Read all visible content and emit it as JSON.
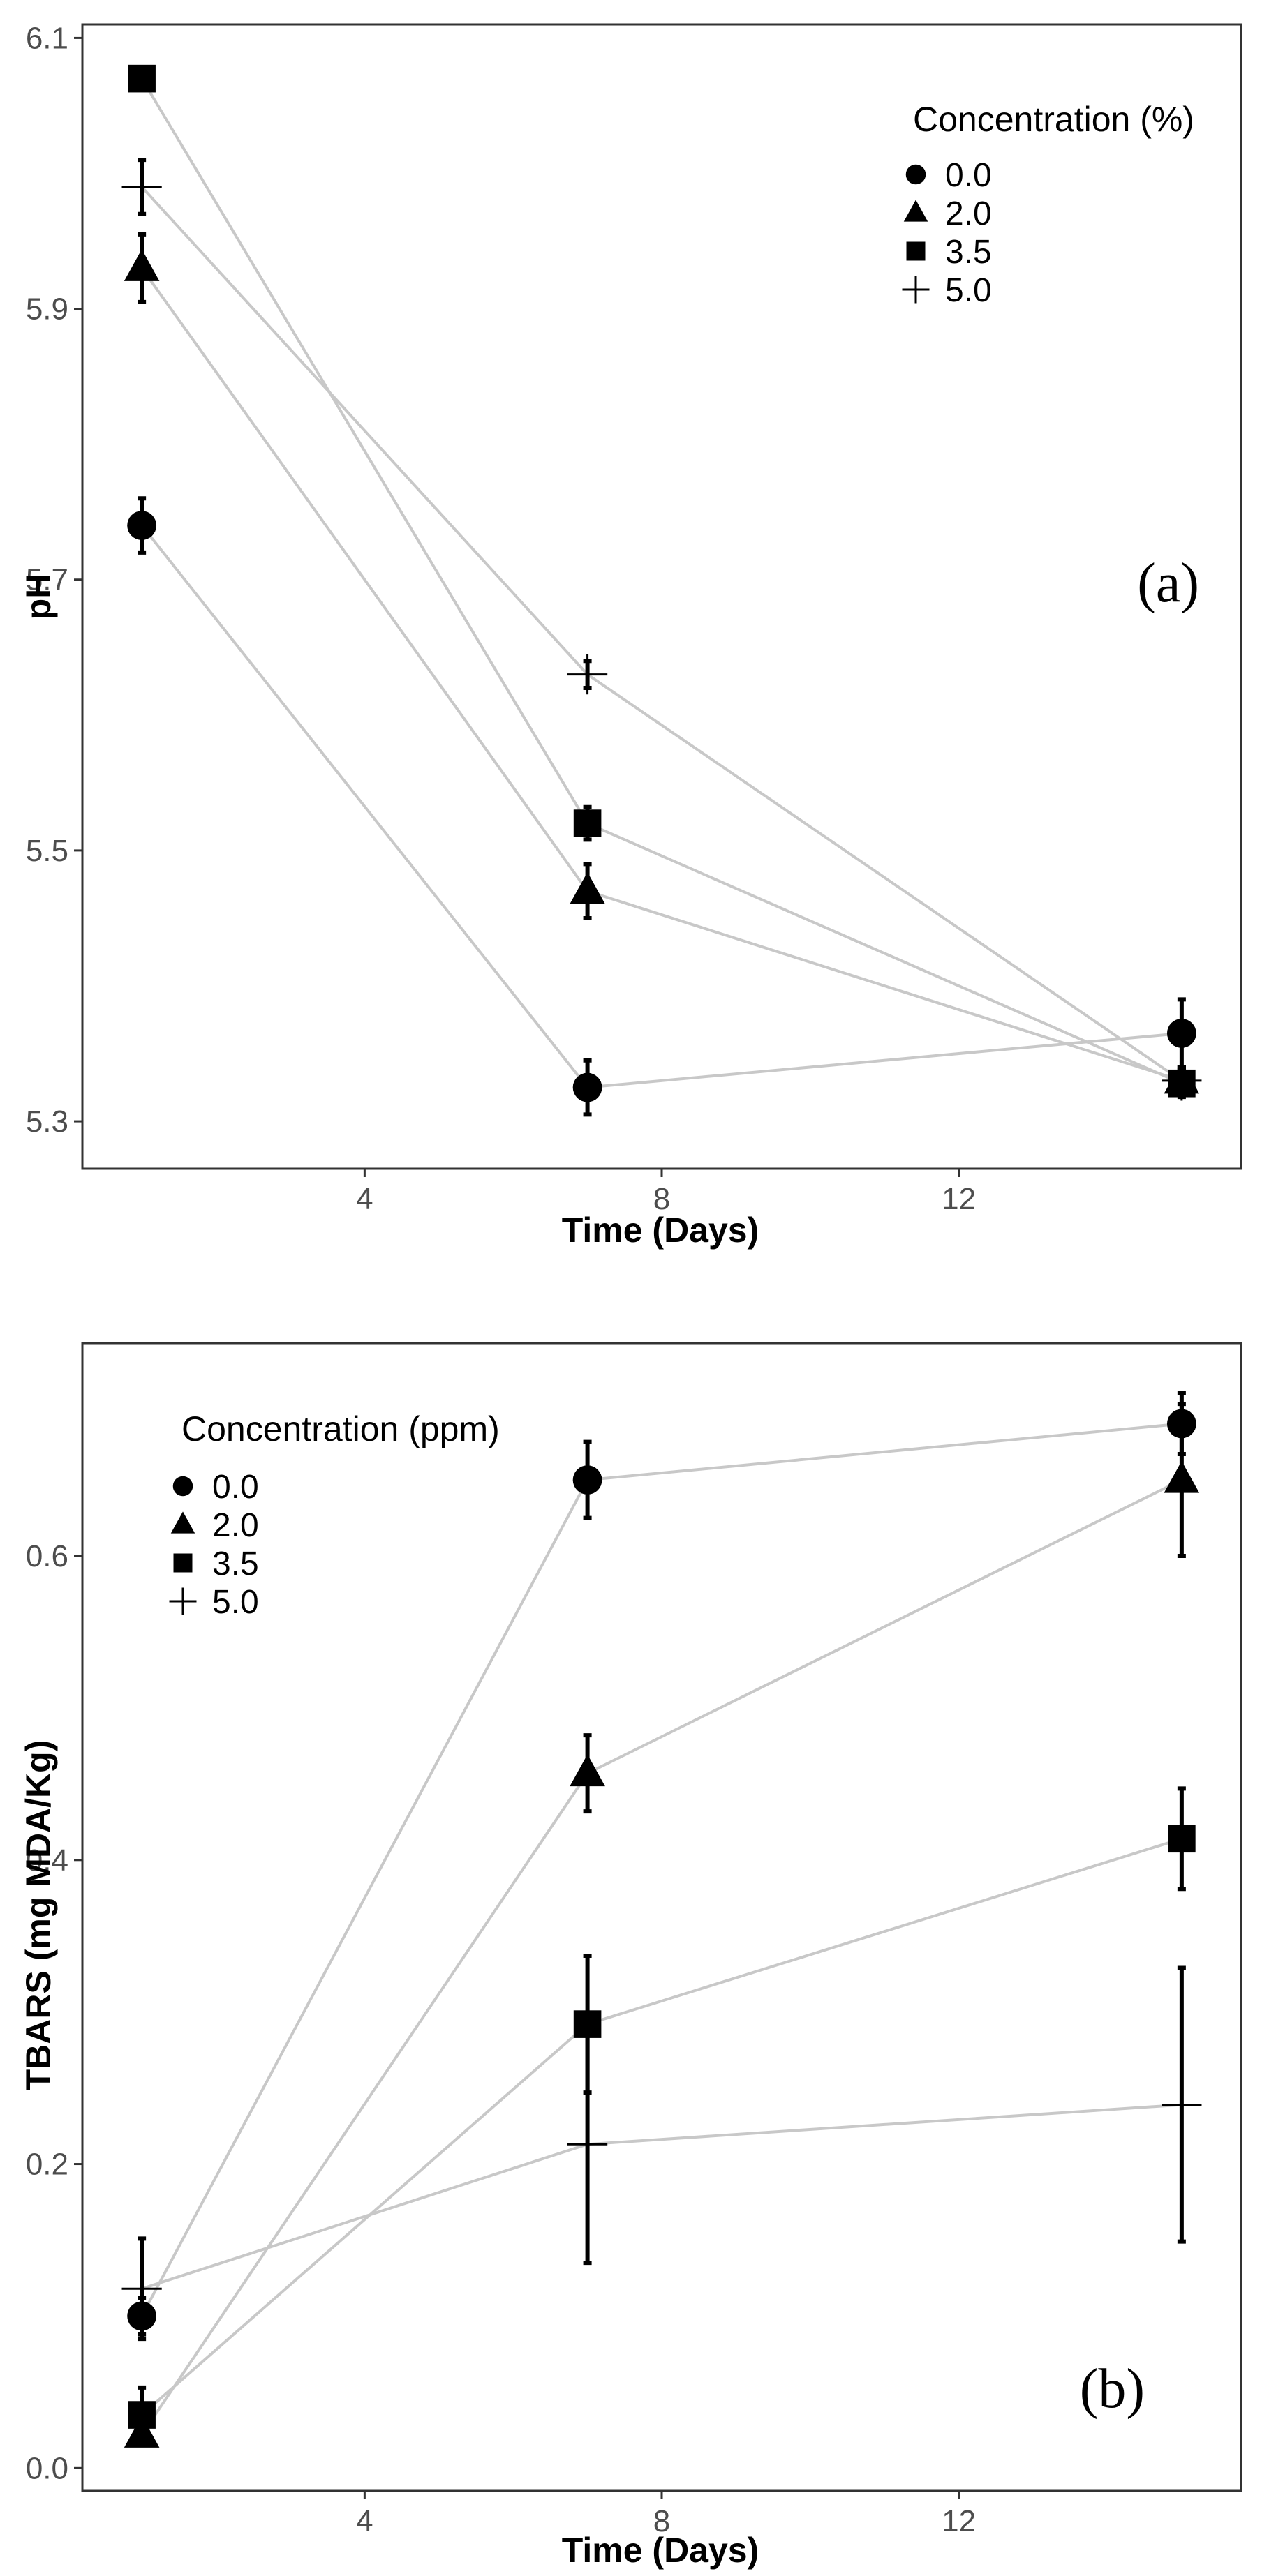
{
  "chart_data": [
    {
      "type": "line",
      "panel_label": "(a)",
      "xlabel": "Time (Days)",
      "ylabel": "pH",
      "xlim": [
        0.2,
        15.8
      ],
      "ylim": [
        5.265,
        6.11
      ],
      "x_ticks": [
        4,
        8,
        12
      ],
      "y_ticks": [
        5.3,
        5.5,
        5.7,
        5.9,
        6.1
      ],
      "x_tick_labels": [
        "4",
        "8",
        "12"
      ],
      "y_tick_labels": [
        "5.3",
        "5.5",
        "5.7",
        "5.9",
        "6.1"
      ],
      "grid": false,
      "legend": {
        "title": "Concentration (%)",
        "position": "top-right"
      },
      "x": [
        1,
        7,
        15
      ],
      "series": [
        {
          "name": "0.0",
          "marker": "circle",
          "values": [
            5.74,
            5.325,
            5.365
          ],
          "error": [
            0.02,
            0.02,
            0.025
          ]
        },
        {
          "name": "2.0",
          "marker": "triangle",
          "values": [
            5.93,
            5.47,
            5.33
          ],
          "error": [
            0.025,
            0.02,
            0.01
          ]
        },
        {
          "name": "3.5",
          "marker": "square",
          "values": [
            6.07,
            5.52,
            5.328
          ],
          "error": [
            0.008,
            0.012,
            0.01
          ]
        },
        {
          "name": "5.0",
          "marker": "plus",
          "values": [
            5.99,
            5.63,
            5.33
          ],
          "error": [
            0.02,
            0.01,
            0.01
          ]
        }
      ]
    },
    {
      "type": "line",
      "panel_label": "(b)",
      "xlabel": "Time (Days)",
      "ylabel": "TBARS (mg MDA/Kg)",
      "xlim": [
        0.2,
        15.8
      ],
      "ylim": [
        -0.015,
        0.74
      ],
      "x_ticks": [
        4,
        8,
        12
      ],
      "y_ticks": [
        0.0,
        0.2,
        0.4,
        0.6
      ],
      "x_tick_labels": [
        "4",
        "8",
        "12"
      ],
      "y_tick_labels": [
        "0.0",
        "0.2",
        "0.4",
        "0.6"
      ],
      "grid": false,
      "legend": {
        "title": "Concentration (ppm)",
        "position": "top-left"
      },
      "x": [
        1,
        7,
        15
      ],
      "series": [
        {
          "name": "0.0",
          "marker": "circle",
          "values": [
            0.1,
            0.65,
            0.687
          ],
          "error": [
            0.012,
            0.025,
            0.02
          ]
        },
        {
          "name": "2.0",
          "marker": "triangle",
          "values": [
            0.022,
            0.457,
            0.65
          ],
          "error": [
            0.006,
            0.025,
            0.05
          ]
        },
        {
          "name": "3.5",
          "marker": "square",
          "values": [
            0.035,
            0.292,
            0.414
          ],
          "error": [
            0.018,
            0.045,
            0.033
          ]
        },
        {
          "name": "5.0",
          "marker": "plus",
          "values": [
            0.118,
            0.213,
            0.239
          ],
          "error": [
            0.033,
            0.078,
            0.09
          ]
        }
      ]
    }
  ],
  "style": {
    "line_color": "#c8c8c8",
    "marker_color": "#000000",
    "axis_color": "#333333",
    "tick_label_color": "#4d4d4d"
  }
}
